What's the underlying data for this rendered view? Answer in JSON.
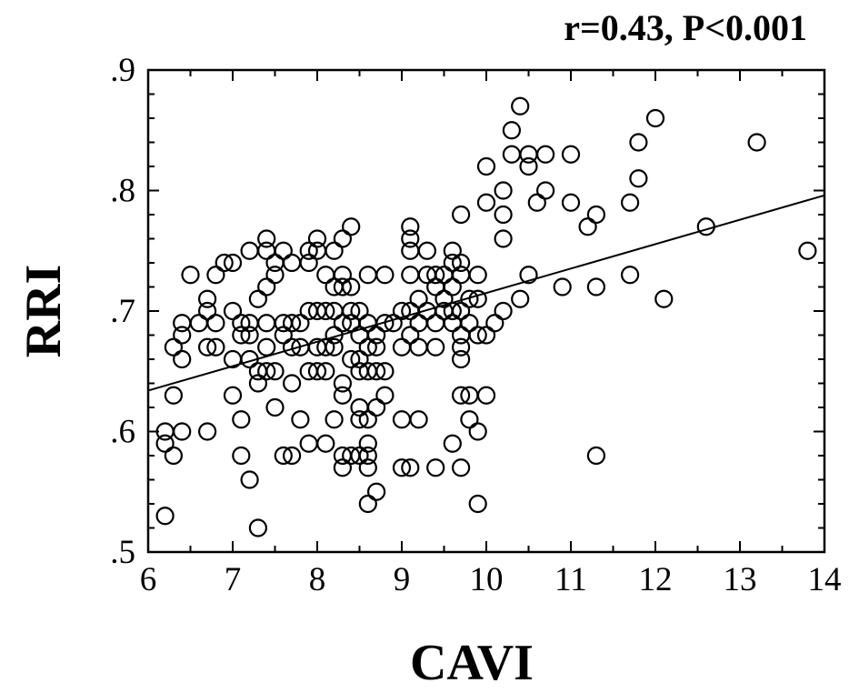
{
  "chart_data": {
    "type": "scatter",
    "title": "",
    "annotation": "r=0.43, P<0.001",
    "xlabel": "CAVI",
    "ylabel": "RRI",
    "xlim": [
      6,
      14
    ],
    "ylim": [
      0.5,
      0.9
    ],
    "x_ticks": [
      6,
      7,
      8,
      9,
      10,
      11,
      12,
      13,
      14
    ],
    "x_tick_labels": [
      "6",
      "7",
      "8",
      "9",
      "10",
      "11",
      "12",
      "13",
      "14"
    ],
    "y_ticks": [
      0.5,
      0.6,
      0.7,
      0.8,
      0.9
    ],
    "y_tick_labels": [
      ".5",
      ".6",
      ".7",
      ".8",
      ".9"
    ],
    "grid": false,
    "legend": "none",
    "regression_line": {
      "x": [
        6,
        14
      ],
      "y": [
        0.634,
        0.796
      ]
    },
    "points": [
      [
        6.2,
        0.53
      ],
      [
        6.2,
        0.59
      ],
      [
        6.2,
        0.6
      ],
      [
        6.3,
        0.58
      ],
      [
        6.3,
        0.63
      ],
      [
        6.3,
        0.67
      ],
      [
        6.4,
        0.66
      ],
      [
        6.4,
        0.68
      ],
      [
        6.4,
        0.69
      ],
      [
        6.4,
        0.6
      ],
      [
        6.5,
        0.73
      ],
      [
        6.6,
        0.69
      ],
      [
        6.7,
        0.71
      ],
      [
        6.7,
        0.7
      ],
      [
        6.7,
        0.67
      ],
      [
        6.7,
        0.6
      ],
      [
        6.8,
        0.73
      ],
      [
        6.8,
        0.69
      ],
      [
        6.8,
        0.67
      ],
      [
        6.9,
        0.74
      ],
      [
        7.0,
        0.74
      ],
      [
        7.0,
        0.7
      ],
      [
        7.0,
        0.66
      ],
      [
        7.0,
        0.63
      ],
      [
        7.1,
        0.69
      ],
      [
        7.1,
        0.68
      ],
      [
        7.1,
        0.61
      ],
      [
        7.1,
        0.58
      ],
      [
        7.2,
        0.75
      ],
      [
        7.2,
        0.69
      ],
      [
        7.2,
        0.68
      ],
      [
        7.2,
        0.66
      ],
      [
        7.2,
        0.56
      ],
      [
        7.3,
        0.71
      ],
      [
        7.3,
        0.65
      ],
      [
        7.3,
        0.64
      ],
      [
        7.3,
        0.52
      ],
      [
        7.4,
        0.76
      ],
      [
        7.4,
        0.75
      ],
      [
        7.4,
        0.72
      ],
      [
        7.4,
        0.69
      ],
      [
        7.4,
        0.67
      ],
      [
        7.4,
        0.65
      ],
      [
        7.5,
        0.74
      ],
      [
        7.5,
        0.73
      ],
      [
        7.5,
        0.65
      ],
      [
        7.5,
        0.62
      ],
      [
        7.6,
        0.75
      ],
      [
        7.6,
        0.69
      ],
      [
        7.6,
        0.68
      ],
      [
        7.6,
        0.58
      ],
      [
        7.7,
        0.74
      ],
      [
        7.7,
        0.69
      ],
      [
        7.7,
        0.67
      ],
      [
        7.7,
        0.64
      ],
      [
        7.7,
        0.58
      ],
      [
        7.8,
        0.69
      ],
      [
        7.8,
        0.67
      ],
      [
        7.8,
        0.61
      ],
      [
        7.9,
        0.74
      ],
      [
        7.9,
        0.75
      ],
      [
        7.9,
        0.7
      ],
      [
        7.9,
        0.65
      ],
      [
        7.9,
        0.59
      ],
      [
        8.0,
        0.76
      ],
      [
        8.0,
        0.75
      ],
      [
        8.0,
        0.7
      ],
      [
        8.0,
        0.67
      ],
      [
        8.0,
        0.65
      ],
      [
        8.1,
        0.73
      ],
      [
        8.1,
        0.7
      ],
      [
        8.1,
        0.67
      ],
      [
        8.1,
        0.65
      ],
      [
        8.1,
        0.59
      ],
      [
        8.2,
        0.75
      ],
      [
        8.2,
        0.72
      ],
      [
        8.2,
        0.7
      ],
      [
        8.2,
        0.68
      ],
      [
        8.2,
        0.67
      ],
      [
        8.2,
        0.61
      ],
      [
        8.3,
        0.76
      ],
      [
        8.3,
        0.73
      ],
      [
        8.3,
        0.72
      ],
      [
        8.3,
        0.69
      ],
      [
        8.3,
        0.64
      ],
      [
        8.3,
        0.63
      ],
      [
        8.3,
        0.58
      ],
      [
        8.3,
        0.57
      ],
      [
        8.4,
        0.77
      ],
      [
        8.4,
        0.72
      ],
      [
        8.4,
        0.7
      ],
      [
        8.4,
        0.69
      ],
      [
        8.4,
        0.66
      ],
      [
        8.4,
        0.58
      ],
      [
        8.5,
        0.7
      ],
      [
        8.5,
        0.68
      ],
      [
        8.5,
        0.66
      ],
      [
        8.5,
        0.65
      ],
      [
        8.5,
        0.62
      ],
      [
        8.5,
        0.61
      ],
      [
        8.5,
        0.58
      ],
      [
        8.6,
        0.73
      ],
      [
        8.6,
        0.69
      ],
      [
        8.6,
        0.67
      ],
      [
        8.6,
        0.65
      ],
      [
        8.6,
        0.61
      ],
      [
        8.6,
        0.59
      ],
      [
        8.6,
        0.58
      ],
      [
        8.6,
        0.57
      ],
      [
        8.6,
        0.54
      ],
      [
        8.7,
        0.68
      ],
      [
        8.7,
        0.67
      ],
      [
        8.7,
        0.65
      ],
      [
        8.7,
        0.62
      ],
      [
        8.7,
        0.55
      ],
      [
        8.8,
        0.73
      ],
      [
        8.8,
        0.69
      ],
      [
        8.8,
        0.65
      ],
      [
        8.8,
        0.63
      ],
      [
        8.9,
        0.69
      ],
      [
        9.0,
        0.67
      ],
      [
        9.0,
        0.61
      ],
      [
        9.0,
        0.57
      ],
      [
        9.0,
        0.7
      ],
      [
        9.1,
        0.77
      ],
      [
        9.1,
        0.76
      ],
      [
        9.1,
        0.75
      ],
      [
        9.1,
        0.73
      ],
      [
        9.1,
        0.7
      ],
      [
        9.1,
        0.68
      ],
      [
        9.1,
        0.57
      ],
      [
        9.2,
        0.71
      ],
      [
        9.2,
        0.69
      ],
      [
        9.2,
        0.67
      ],
      [
        9.2,
        0.61
      ],
      [
        9.3,
        0.75
      ],
      [
        9.3,
        0.73
      ],
      [
        9.3,
        0.7
      ],
      [
        9.4,
        0.73
      ],
      [
        9.4,
        0.72
      ],
      [
        9.4,
        0.69
      ],
      [
        9.4,
        0.67
      ],
      [
        9.4,
        0.57
      ],
      [
        9.5,
        0.73
      ],
      [
        9.5,
        0.71
      ],
      [
        9.5,
        0.7
      ],
      [
        9.6,
        0.75
      ],
      [
        9.6,
        0.74
      ],
      [
        9.6,
        0.72
      ],
      [
        9.6,
        0.7
      ],
      [
        9.6,
        0.69
      ],
      [
        9.6,
        0.59
      ],
      [
        9.7,
        0.78
      ],
      [
        9.7,
        0.74
      ],
      [
        9.7,
        0.73
      ],
      [
        9.7,
        0.7
      ],
      [
        9.7,
        0.68
      ],
      [
        9.7,
        0.67
      ],
      [
        9.7,
        0.66
      ],
      [
        9.7,
        0.63
      ],
      [
        9.7,
        0.57
      ],
      [
        9.8,
        0.71
      ],
      [
        9.8,
        0.69
      ],
      [
        9.8,
        0.63
      ],
      [
        9.8,
        0.61
      ],
      [
        9.9,
        0.73
      ],
      [
        9.9,
        0.71
      ],
      [
        9.9,
        0.68
      ],
      [
        9.9,
        0.6
      ],
      [
        9.9,
        0.54
      ],
      [
        10.0,
        0.82
      ],
      [
        10.0,
        0.79
      ],
      [
        10.0,
        0.68
      ],
      [
        10.0,
        0.63
      ],
      [
        10.1,
        0.69
      ],
      [
        10.2,
        0.8
      ],
      [
        10.2,
        0.78
      ],
      [
        10.2,
        0.76
      ],
      [
        10.2,
        0.7
      ],
      [
        10.3,
        0.85
      ],
      [
        10.3,
        0.83
      ],
      [
        10.4,
        0.87
      ],
      [
        10.4,
        0.71
      ],
      [
        10.5,
        0.83
      ],
      [
        10.5,
        0.82
      ],
      [
        10.5,
        0.73
      ],
      [
        10.6,
        0.79
      ],
      [
        10.7,
        0.83
      ],
      [
        10.7,
        0.8
      ],
      [
        10.9,
        0.72
      ],
      [
        11.0,
        0.83
      ],
      [
        11.0,
        0.79
      ],
      [
        11.2,
        0.77
      ],
      [
        11.3,
        0.78
      ],
      [
        11.3,
        0.72
      ],
      [
        11.3,
        0.58
      ],
      [
        11.7,
        0.79
      ],
      [
        11.7,
        0.73
      ],
      [
        11.8,
        0.84
      ],
      [
        11.8,
        0.81
      ],
      [
        12.0,
        0.86
      ],
      [
        12.1,
        0.71
      ],
      [
        12.6,
        0.77
      ],
      [
        13.2,
        0.84
      ],
      [
        13.8,
        0.75
      ]
    ]
  }
}
